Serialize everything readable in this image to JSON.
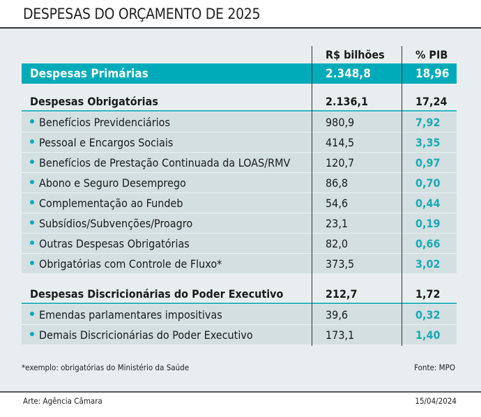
{
  "title": "DESPESAS DO ORÇAMENTO DE 2025",
  "columns": [
    "",
    "R$ bilhões",
    "% PIB"
  ],
  "primary": {
    "label": "Despesas Primárias",
    "value": "2.348,8",
    "pib": "18,96"
  },
  "groups": [
    {
      "label": "Despesas Obrigatórias",
      "value": "2.136,1",
      "pib": "17,24",
      "items": [
        {
          "label": "Benefícios Previdenciários",
          "value": "980,9",
          "pib": "7,92"
        },
        {
          "label": "Pessoal e Encargos Sociais",
          "value": "414,5",
          "pib": "3,35"
        },
        {
          "label": "Benefícios de Prestação Continuada da LOAS/RMV",
          "value": "120,7",
          "pib": "0,97"
        },
        {
          "label": "Abono e Seguro Desemprego",
          "value": "86,8",
          "pib": "0,70"
        },
        {
          "label": "Complementação ao Fundeb",
          "value": "54,6",
          "pib": "0,44"
        },
        {
          "label": "Subsídios/Subvenções/Proagro",
          "value": "23,1",
          "pib": "0,19"
        },
        {
          "label": "Outras Despesas Obrigatórias",
          "value": "82,0",
          "pib": "0,66"
        },
        {
          "label": "Obrigatórias com Controle de Fluxo*",
          "value": "373,5",
          "pib": "3,02"
        }
      ]
    },
    {
      "label": "Despesas Discricionárias do Poder Executivo",
      "value": "212,7",
      "pib": "1,72",
      "items": [
        {
          "label": "Emendas parlamentares impositivas",
          "value": "39,6",
          "pib": "0,32"
        },
        {
          "label": "Demais Discricionárias do Poder Executivo",
          "value": "173,1",
          "pib": "1,40"
        }
      ]
    }
  ],
  "footnote": "*exemplo: obrigatórias do Ministério da Saúde",
  "source": "Fonte: MPO",
  "credit": "Arte: Agência Câmara",
  "date": "15/04/2024",
  "colors": {
    "accent": "#00abb9",
    "panel": "#e8eef0",
    "subrow": "#d3dfe1"
  }
}
